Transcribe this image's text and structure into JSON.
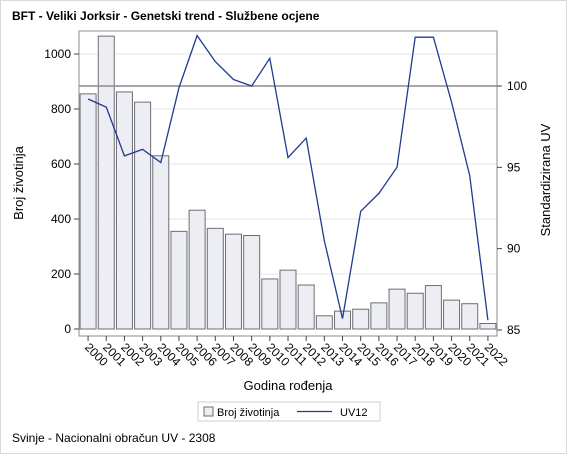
{
  "chart_data": {
    "type": "bar",
    "title": "BFT - Veliki Jorksir - Genetski trend - Službene ocjene",
    "xlabel": "Godina rođenja",
    "ylabel": "Broj životinja",
    "y2label": "Standardizirana UV",
    "categories": [
      "2000",
      "2001",
      "2002",
      "2003",
      "2004",
      "2005",
      "2006",
      "2007",
      "2008",
      "2009",
      "2010",
      "2011",
      "2012",
      "2013",
      "2014",
      "2015",
      "2016",
      "2017",
      "2018",
      "2019",
      "2020",
      "2021",
      "2022"
    ],
    "series": [
      {
        "name": "Broj životinja",
        "type": "bar",
        "axis": "left",
        "values": [
          855,
          1065,
          862,
          825,
          630,
          355,
          432,
          366,
          345,
          340,
          182,
          214,
          160,
          48,
          65,
          72,
          95,
          145,
          130,
          158,
          105,
          92,
          20
        ]
      },
      {
        "name": "UV12",
        "type": "line",
        "axis": "right",
        "values": [
          99.2,
          98.7,
          95.7,
          96.1,
          95.3,
          99.9,
          103.1,
          101.5,
          100.4,
          100.0,
          101.7,
          95.6,
          96.8,
          90.5,
          85.7,
          92.3,
          93.4,
          95.0,
          103.0,
          103.0,
          99.0,
          94.5,
          85.6
        ]
      }
    ],
    "ylim": [
      0,
      1100
    ],
    "yticks": [
      0,
      200,
      400,
      600,
      800,
      1000
    ],
    "y2lim": [
      84.9,
      103.3
    ],
    "y2ticks": [
      85,
      90,
      95,
      100
    ],
    "reference_line": 100,
    "colors": {
      "bar_fill": "#eceef3",
      "bar_stroke": "#6d6e74",
      "line": "#203b8f",
      "grid": "#e4e4e4",
      "ref": "#8c8c8c"
    },
    "legend": {
      "position": "bottom"
    },
    "footnote": "Svinje - Nacionalni obračun UV - 2308"
  }
}
